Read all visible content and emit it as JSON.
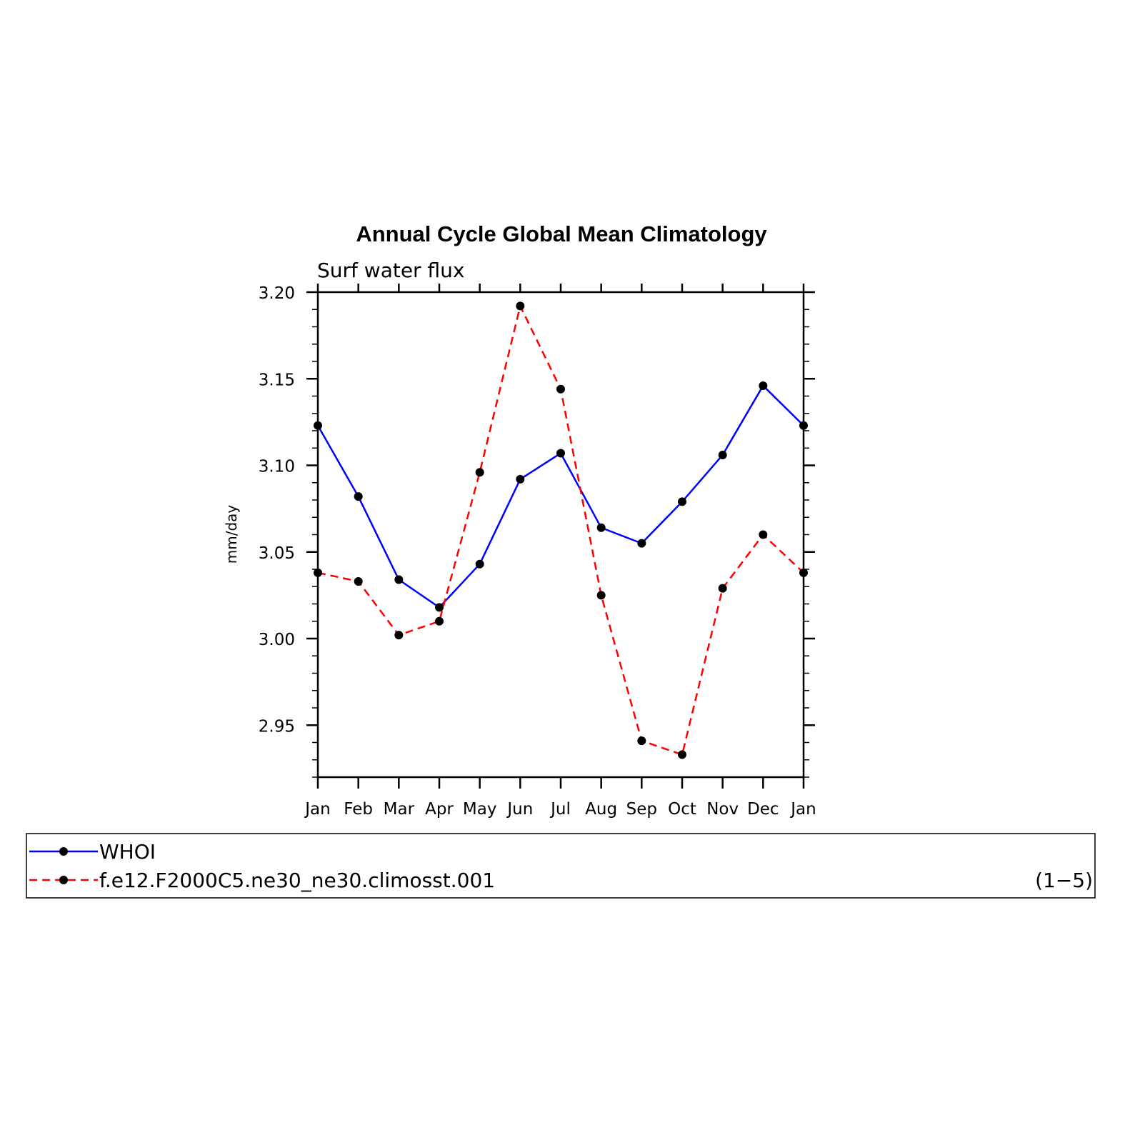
{
  "chart_data": {
    "type": "line",
    "title": "Annual Cycle Global Mean Climatology",
    "subtitle": "Surf water flux",
    "ylabel": "mm/day",
    "xlabel": "",
    "categories": [
      "Jan",
      "Feb",
      "Mar",
      "Apr",
      "May",
      "Jun",
      "Jul",
      "Aug",
      "Sep",
      "Oct",
      "Nov",
      "Dec",
      "Jan"
    ],
    "ylim": [
      2.92,
      3.2
    ],
    "yticks": [
      "3.20",
      "3.15",
      "3.10",
      "3.05",
      "3.00",
      "2.95"
    ],
    "ytick_values": [
      3.2,
      3.15,
      3.1,
      3.05,
      3.0,
      2.95
    ],
    "grid": false,
    "legend_position": "bottom",
    "legend_tag": "(1−5)",
    "series": [
      {
        "name": "WHOI",
        "color": "#0000ff",
        "dash": "solid",
        "values": [
          3.123,
          3.082,
          3.034,
          3.018,
          3.043,
          3.092,
          3.107,
          3.064,
          3.055,
          3.079,
          3.106,
          3.146,
          3.123
        ]
      },
      {
        "name": "f.e12.F2000C5.ne30_ne30.climosst.001",
        "color": "#ff0000",
        "dash": "dashed",
        "values": [
          3.038,
          3.033,
          3.002,
          3.01,
          3.096,
          3.192,
          3.144,
          3.025,
          2.941,
          2.933,
          3.029,
          3.06,
          3.038
        ]
      }
    ]
  }
}
